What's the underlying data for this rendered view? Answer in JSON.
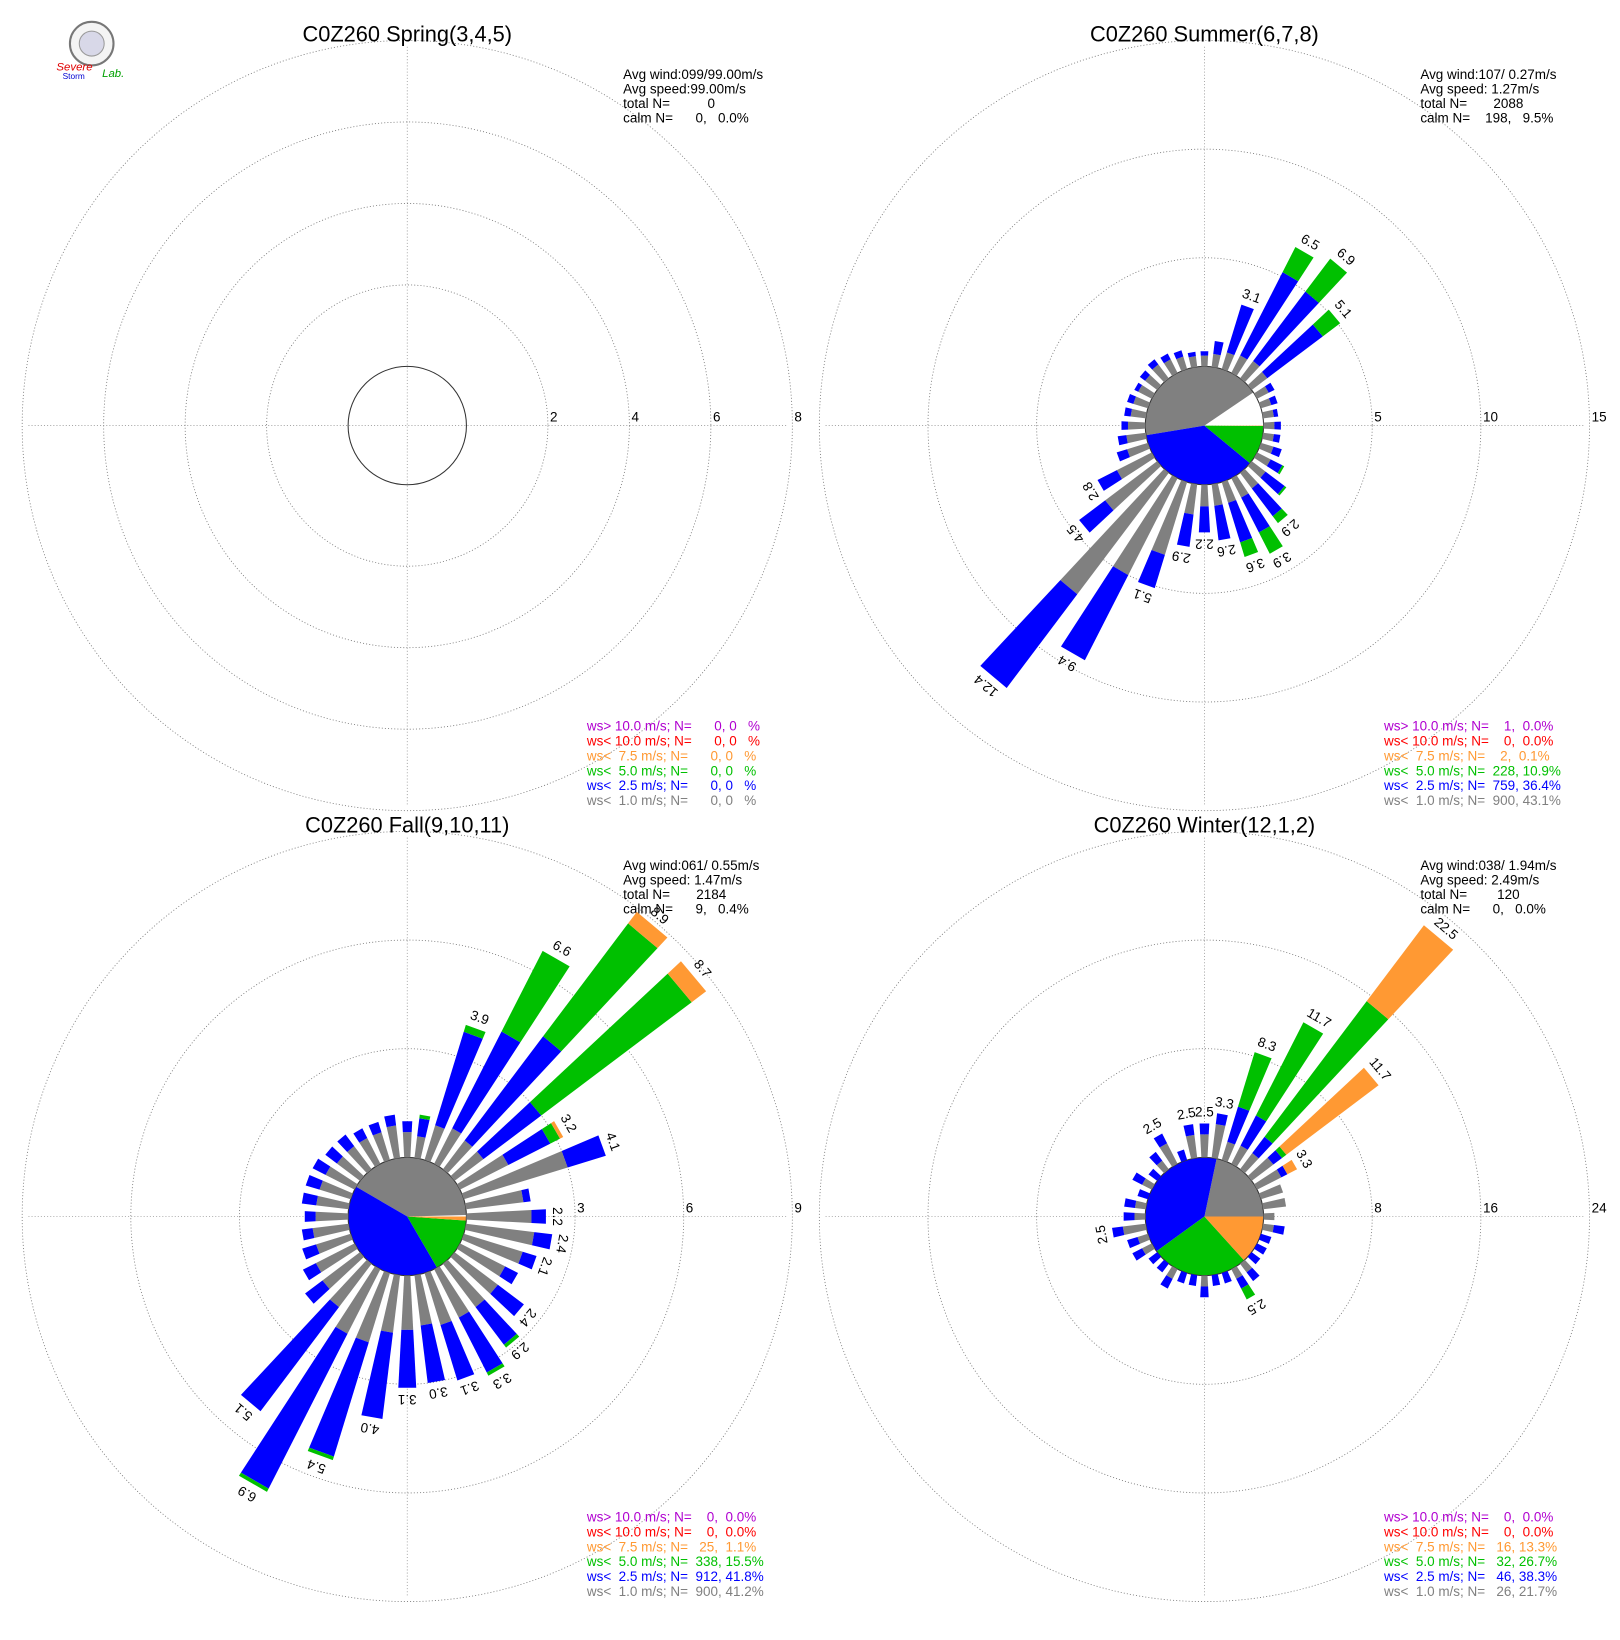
{
  "logo": [
    "Severe",
    "Storm",
    "Lab."
  ],
  "chart_data": [
    {
      "type": "windrose",
      "title": "C0Z260 Spring(3,4,5)",
      "stats": [
        "Avg wind:099/99.00m/s",
        "Avg speed:99.00m/s",
        "total N=          0",
        "calm N=      0,   0.0%"
      ],
      "rlim": [
        0,
        8
      ],
      "rticks": [
        2,
        4,
        6,
        8
      ],
      "calm_share": 0,
      "x": [],
      "value_labels": [],
      "series": [
        {
          "name": "ws> 10.0 m/s; N=      0, 0   %",
          "color": "#b000d0",
          "share": 0,
          "values": []
        },
        {
          "name": "ws< 10.0 m/s; N=      0, 0   %",
          "color": "#ff0000",
          "share": 0,
          "values": []
        },
        {
          "name": "ws<  7.5 m/s; N=      0, 0   %",
          "color": "#ff9933",
          "share": 0,
          "values": []
        },
        {
          "name": "ws<  5.0 m/s; N=      0, 0   %",
          "color": "#00c000",
          "share": 0,
          "values": []
        },
        {
          "name": "ws<  2.5 m/s; N=      0, 0   %",
          "color": "#0000ff",
          "share": 0,
          "values": []
        },
        {
          "name": "ws<  1.0 m/s; N=      0, 0   %",
          "color": "#808080",
          "share": 0,
          "values": []
        }
      ]
    },
    {
      "type": "windrose",
      "title": "C0Z260 Summer(6,7,8)",
      "stats": [
        "Avg wind:107/ 0.27m/s",
        "Avg speed: 1.27m/s",
        "total N=       2088",
        "calm N=    198,   9.5%"
      ],
      "rlim": [
        0,
        15
      ],
      "rticks": [
        5,
        10,
        15
      ],
      "calm_share": 9.5,
      "x": [
        0,
        10,
        20,
        30,
        40,
        50,
        60,
        70,
        80,
        90,
        100,
        110,
        120,
        130,
        140,
        150,
        160,
        170,
        180,
        190,
        200,
        210,
        220,
        230,
        240,
        250,
        260,
        270,
        280,
        290,
        300,
        310,
        320,
        330,
        340,
        350
      ],
      "value_labels": [
        null,
        null,
        "3.1",
        "6.5",
        "6.9",
        "5.1",
        null,
        null,
        null,
        null,
        null,
        null,
        null,
        null,
        "2.9",
        "3.9",
        "3.6",
        "2.6",
        "2.2",
        "2.9",
        "5.1",
        "9.4",
        "12.4",
        "4.5",
        "2.8",
        null,
        null,
        null,
        null,
        null,
        null,
        null,
        null,
        null,
        null,
        null
      ],
      "series": [
        {
          "name": "ws> 10.0 m/s; N=    1,  0.0%",
          "color": "#b000d0",
          "share": 0.0,
          "values": [
            0,
            0,
            0,
            0,
            0,
            0,
            0,
            0,
            0,
            0,
            0,
            0,
            0,
            0,
            0,
            0,
            0,
            0,
            0,
            0,
            0,
            0,
            0,
            0,
            0,
            0,
            0,
            0,
            0,
            0,
            0,
            0,
            0,
            0,
            0,
            0
          ]
        },
        {
          "name": "ws< 10.0 m/s; N=    0,  0.0%",
          "color": "#ff0000",
          "share": 0.0,
          "values": [
            0,
            0,
            0,
            0,
            0,
            0,
            0,
            0,
            0,
            0,
            0,
            0,
            0,
            0,
            0,
            0,
            0,
            0,
            0,
            0,
            0,
            0,
            0,
            0,
            0,
            0,
            0,
            0,
            0,
            0,
            0,
            0,
            0,
            0,
            0,
            0
          ]
        },
        {
          "name": "ws<  7.5 m/s; N=    2,  0.1%",
          "color": "#ff9933",
          "share": 0.1,
          "values": [
            0,
            0,
            0,
            0,
            0,
            0,
            0,
            0,
            0,
            0,
            0,
            0,
            0,
            0,
            0,
            0,
            0,
            0,
            0,
            0,
            0,
            0,
            0,
            0,
            0,
            0,
            0,
            0,
            0,
            0,
            0,
            0,
            0,
            0,
            0,
            0
          ]
        },
        {
          "name": "ws<  5.0 m/s; N=  228, 10.9%",
          "color": "#00c000",
          "share": 10.9,
          "values": [
            0,
            0,
            0,
            1.3,
            1.9,
            1.0,
            0,
            0,
            0,
            0,
            0,
            0,
            0.1,
            0.1,
            0.4,
            1.1,
            0.7,
            0,
            0,
            0,
            0,
            0,
            0,
            0,
            0,
            0,
            0,
            0,
            0,
            0,
            0,
            0,
            0,
            0,
            0,
            0
          ]
        },
        {
          "name": "ws<  2.5 m/s; N=  759, 36.4%",
          "color": "#0000ff",
          "share": 36.4,
          "values": [
            0.2,
            0.6,
            2.3,
            4.3,
            4.0,
            3.2,
            0.3,
            0.3,
            0.2,
            0.3,
            0.3,
            0.4,
            0.6,
            1.1,
            1.6,
            1.8,
            1.9,
            1.6,
            1.2,
            1.5,
            1.6,
            4.4,
            5.4,
            1.5,
            1.0,
            0.5,
            0.4,
            0.3,
            0.3,
            0.3,
            0.2,
            0.3,
            0.3,
            0.3,
            0.3,
            0.2
          ]
        },
        {
          "name": "ws<  1.0 m/s; N=  900, 43.1%",
          "color": "#808080",
          "share": 43.1,
          "values": [
            0.5,
            0.6,
            0.8,
            0.9,
            1.0,
            0.9,
            0.6,
            0.5,
            0.5,
            0.5,
            0.5,
            0.6,
            0.7,
            0.8,
            0.9,
            1.0,
            1.0,
            1.0,
            1.0,
            1.4,
            3.5,
            5.0,
            7.0,
            3.0,
            1.8,
            1.0,
            0.9,
            0.8,
            0.7,
            0.7,
            0.7,
            0.7,
            0.8,
            0.7,
            0.6,
            0.5
          ]
        }
      ]
    },
    {
      "type": "windrose",
      "title": "C0Z260 Fall(9,10,11)",
      "stats": [
        "Avg wind:061/ 0.55m/s",
        "Avg speed: 1.47m/s",
        "total N=       2184",
        "calm N=      9,   0.4%"
      ],
      "rlim": [
        0,
        9
      ],
      "rticks": [
        3,
        6,
        9
      ],
      "calm_share": 0.4,
      "x": [
        0,
        10,
        20,
        30,
        40,
        50,
        60,
        70,
        80,
        90,
        100,
        110,
        120,
        130,
        140,
        150,
        160,
        170,
        180,
        190,
        200,
        210,
        220,
        230,
        240,
        250,
        260,
        270,
        280,
        290,
        300,
        310,
        320,
        330,
        340,
        350
      ],
      "value_labels": [
        null,
        null,
        "3.9",
        "6.6",
        "8.9",
        "8.7",
        "3.2",
        "4.1",
        null,
        "2.2",
        "2.4",
        "2.1",
        null,
        "2.4",
        "2.9",
        "3.3",
        "3.1",
        "3.0",
        "3.1",
        "4.0",
        "5.4",
        "6.9",
        "5.1",
        null,
        null,
        null,
        null,
        null,
        null,
        null,
        null,
        null,
        null,
        null,
        null,
        null
      ],
      "series": [
        {
          "name": "ws> 10.0 m/s; N=    0,  0.0%",
          "color": "#b000d0",
          "share": 0.0,
          "values": [
            0,
            0,
            0,
            0,
            0,
            0,
            0,
            0,
            0,
            0,
            0,
            0,
            0,
            0,
            0,
            0,
            0,
            0,
            0,
            0,
            0,
            0,
            0,
            0,
            0,
            0,
            0,
            0,
            0,
            0,
            0,
            0,
            0,
            0,
            0,
            0
          ]
        },
        {
          "name": "ws< 10.0 m/s; N=    0,  0.0%",
          "color": "#ff0000",
          "share": 0.0,
          "values": [
            0,
            0,
            0,
            0,
            0,
            0,
            0,
            0,
            0,
            0,
            0,
            0,
            0,
            0,
            0,
            0,
            0,
            0,
            0,
            0,
            0,
            0,
            0,
            0,
            0,
            0,
            0,
            0,
            0,
            0,
            0,
            0,
            0,
            0,
            0,
            0
          ]
        },
        {
          "name": "ws<  7.5 m/s; N=   25,  1.1%",
          "color": "#ff9933",
          "share": 1.1,
          "values": [
            0,
            0,
            0,
            0,
            0.4,
            0.5,
            0.1,
            0,
            0,
            0,
            0,
            0,
            0,
            0,
            0,
            0,
            0,
            0,
            0,
            0,
            0,
            0,
            0,
            0,
            0,
            0,
            0,
            0,
            0,
            0,
            0,
            0,
            0,
            0,
            0,
            0
          ]
        },
        {
          "name": "ws<  5.0 m/s; N=  338, 15.5%",
          "color": "#00c000",
          "share": 15.5,
          "values": [
            0,
            0.1,
            0.2,
            2.5,
            3.9,
            5.2,
            0.3,
            0,
            0,
            0,
            0,
            0,
            0,
            0,
            0.1,
            0.1,
            0,
            0,
            0,
            0,
            0.1,
            0.1,
            0,
            0,
            0,
            0,
            0,
            0,
            0,
            0,
            0,
            0,
            0,
            0,
            0,
            0
          ]
        },
        {
          "name": "ws<  2.5 m/s; N=  912, 41.8%",
          "color": "#0000ff",
          "share": 41.8,
          "values": [
            0.3,
            0.5,
            2.7,
            3.0,
            3.6,
            2.0,
            1.3,
            1.1,
            0.2,
            0.4,
            0.5,
            0.4,
            0.4,
            0.9,
            1.3,
            1.7,
            1.6,
            1.6,
            1.6,
            2.4,
            3.3,
            4.8,
            3.6,
            0.6,
            0.4,
            0.4,
            0.3,
            0.3,
            0.4,
            0.4,
            0.4,
            0.4,
            0.4,
            0.3,
            0.3,
            0.3
          ]
        },
        {
          "name": "ws<  1.0 m/s; N=  900, 41.2%",
          "color": "#808080",
          "share": 41.2,
          "values": [
            0.7,
            0.6,
            1.0,
            1.1,
            1.0,
            1.0,
            1.5,
            3.0,
            1.6,
            1.8,
            1.9,
            1.7,
            1.4,
            1.5,
            1.5,
            1.5,
            1.5,
            1.4,
            1.5,
            1.6,
            2.0,
            2.0,
            1.5,
            1.3,
            1.2,
            1.0,
            1.0,
            0.9,
            0.9,
            0.9,
            0.9,
            0.8,
            0.8,
            0.8,
            0.8,
            0.9
          ]
        }
      ]
    },
    {
      "type": "windrose",
      "title": "C0Z260 Winter(12,1,2)",
      "stats": [
        "Avg wind:038/ 1.94m/s",
        "Avg speed: 2.49m/s",
        "total N=        120",
        "calm N=      0,   0.0%"
      ],
      "rlim": [
        0,
        24
      ],
      "rticks": [
        8,
        16,
        24
      ],
      "calm_share": 0,
      "x": [
        0,
        10,
        20,
        30,
        40,
        50,
        60,
        70,
        80,
        90,
        100,
        110,
        120,
        130,
        140,
        150,
        160,
        170,
        180,
        190,
        200,
        210,
        220,
        230,
        240,
        250,
        260,
        270,
        280,
        290,
        300,
        310,
        320,
        330,
        340,
        350
      ],
      "value_labels": [
        "2.5",
        "3.3",
        "8.3",
        "11.7",
        "22.5",
        "11.7",
        "3.3",
        null,
        null,
        null,
        null,
        null,
        null,
        null,
        null,
        "2.5",
        null,
        null,
        null,
        null,
        null,
        null,
        null,
        null,
        null,
        null,
        "2.5",
        null,
        null,
        null,
        null,
        null,
        null,
        "2.5",
        null,
        "2.5"
      ],
      "series": [
        {
          "name": "ws> 10.0 m/s; N=    0,  0.0%",
          "color": "#b000d0",
          "share": 0.0,
          "values": [
            0,
            0,
            0,
            0,
            0,
            0,
            0,
            0,
            0,
            0,
            0,
            0,
            0,
            0,
            0,
            0,
            0,
            0,
            0,
            0,
            0,
            0,
            0,
            0,
            0,
            0,
            0,
            0,
            0,
            0,
            0,
            0,
            0,
            0,
            0,
            0
          ]
        },
        {
          "name": "ws< 10.0 m/s; N=    0,  0.0%",
          "color": "#ff0000",
          "share": 0.0,
          "values": [
            0,
            0,
            0,
            0,
            0,
            0,
            0,
            0,
            0,
            0,
            0,
            0,
            0,
            0,
            0,
            0,
            0,
            0,
            0,
            0,
            0,
            0,
            0,
            0,
            0,
            0,
            0,
            0,
            0,
            0,
            0,
            0,
            0,
            0,
            0,
            0
          ]
        },
        {
          "name": "ws<  7.5 m/s; N=   16, 13.3%",
          "color": "#ff9933",
          "share": 13.3,
          "values": [
            0,
            0,
            0,
            0,
            7.0,
            8.5,
            0.8,
            0,
            0,
            0,
            0,
            0,
            0,
            0,
            0,
            0,
            0,
            0,
            0,
            0,
            0,
            0,
            0,
            0,
            0,
            0,
            0,
            0,
            0,
            0,
            0,
            0,
            0,
            0,
            0,
            0
          ]
        },
        {
          "name": "ws<  5.0 m/s; N=   32, 26.7%",
          "color": "#00c000",
          "share": 26.7,
          "values": [
            0,
            0,
            4.2,
            7.7,
            12.5,
            0.4,
            0,
            0,
            0,
            0,
            0,
            0,
            0,
            0,
            0,
            0.9,
            0,
            0,
            0,
            0,
            0,
            0,
            0,
            0,
            0,
            0,
            0,
            0,
            0,
            0,
            0,
            0,
            0,
            0,
            0,
            0
          ]
        },
        {
          "name": "ws<  2.5 m/s; N=   46, 38.3%",
          "color": "#0000ff",
          "share": 38.3,
          "values": [
            0.8,
            0.8,
            2.7,
            2.5,
            1.5,
            0.8,
            0.5,
            0,
            0,
            0,
            0.8,
            0.8,
            0.8,
            0.8,
            0.8,
            0.8,
            0.8,
            0.8,
            0.8,
            0.8,
            0.8,
            0.8,
            0.8,
            0.8,
            0.8,
            0.8,
            0.8,
            0.8,
            0.8,
            0.8,
            0.8,
            0.8,
            0.8,
            0.8,
            0.8,
            0.8
          ]
        },
        {
          "name": "ws<  1.0 m/s; N=   26, 21.7%",
          "color": "#808080",
          "share": 21.7,
          "values": [
            1.7,
            2.5,
            1.4,
            1.5,
            1.5,
            2.0,
            2.0,
            1.7,
            1.7,
            0.8,
            0.8,
            0,
            0,
            0,
            0.8,
            0.8,
            0,
            0,
            0.8,
            0,
            0,
            0.8,
            0,
            0,
            0.8,
            0.8,
            1.7,
            0.8,
            0.8,
            0,
            0.8,
            0,
            0.8,
            1.7,
            0,
            1.7
          ]
        }
      ]
    }
  ]
}
